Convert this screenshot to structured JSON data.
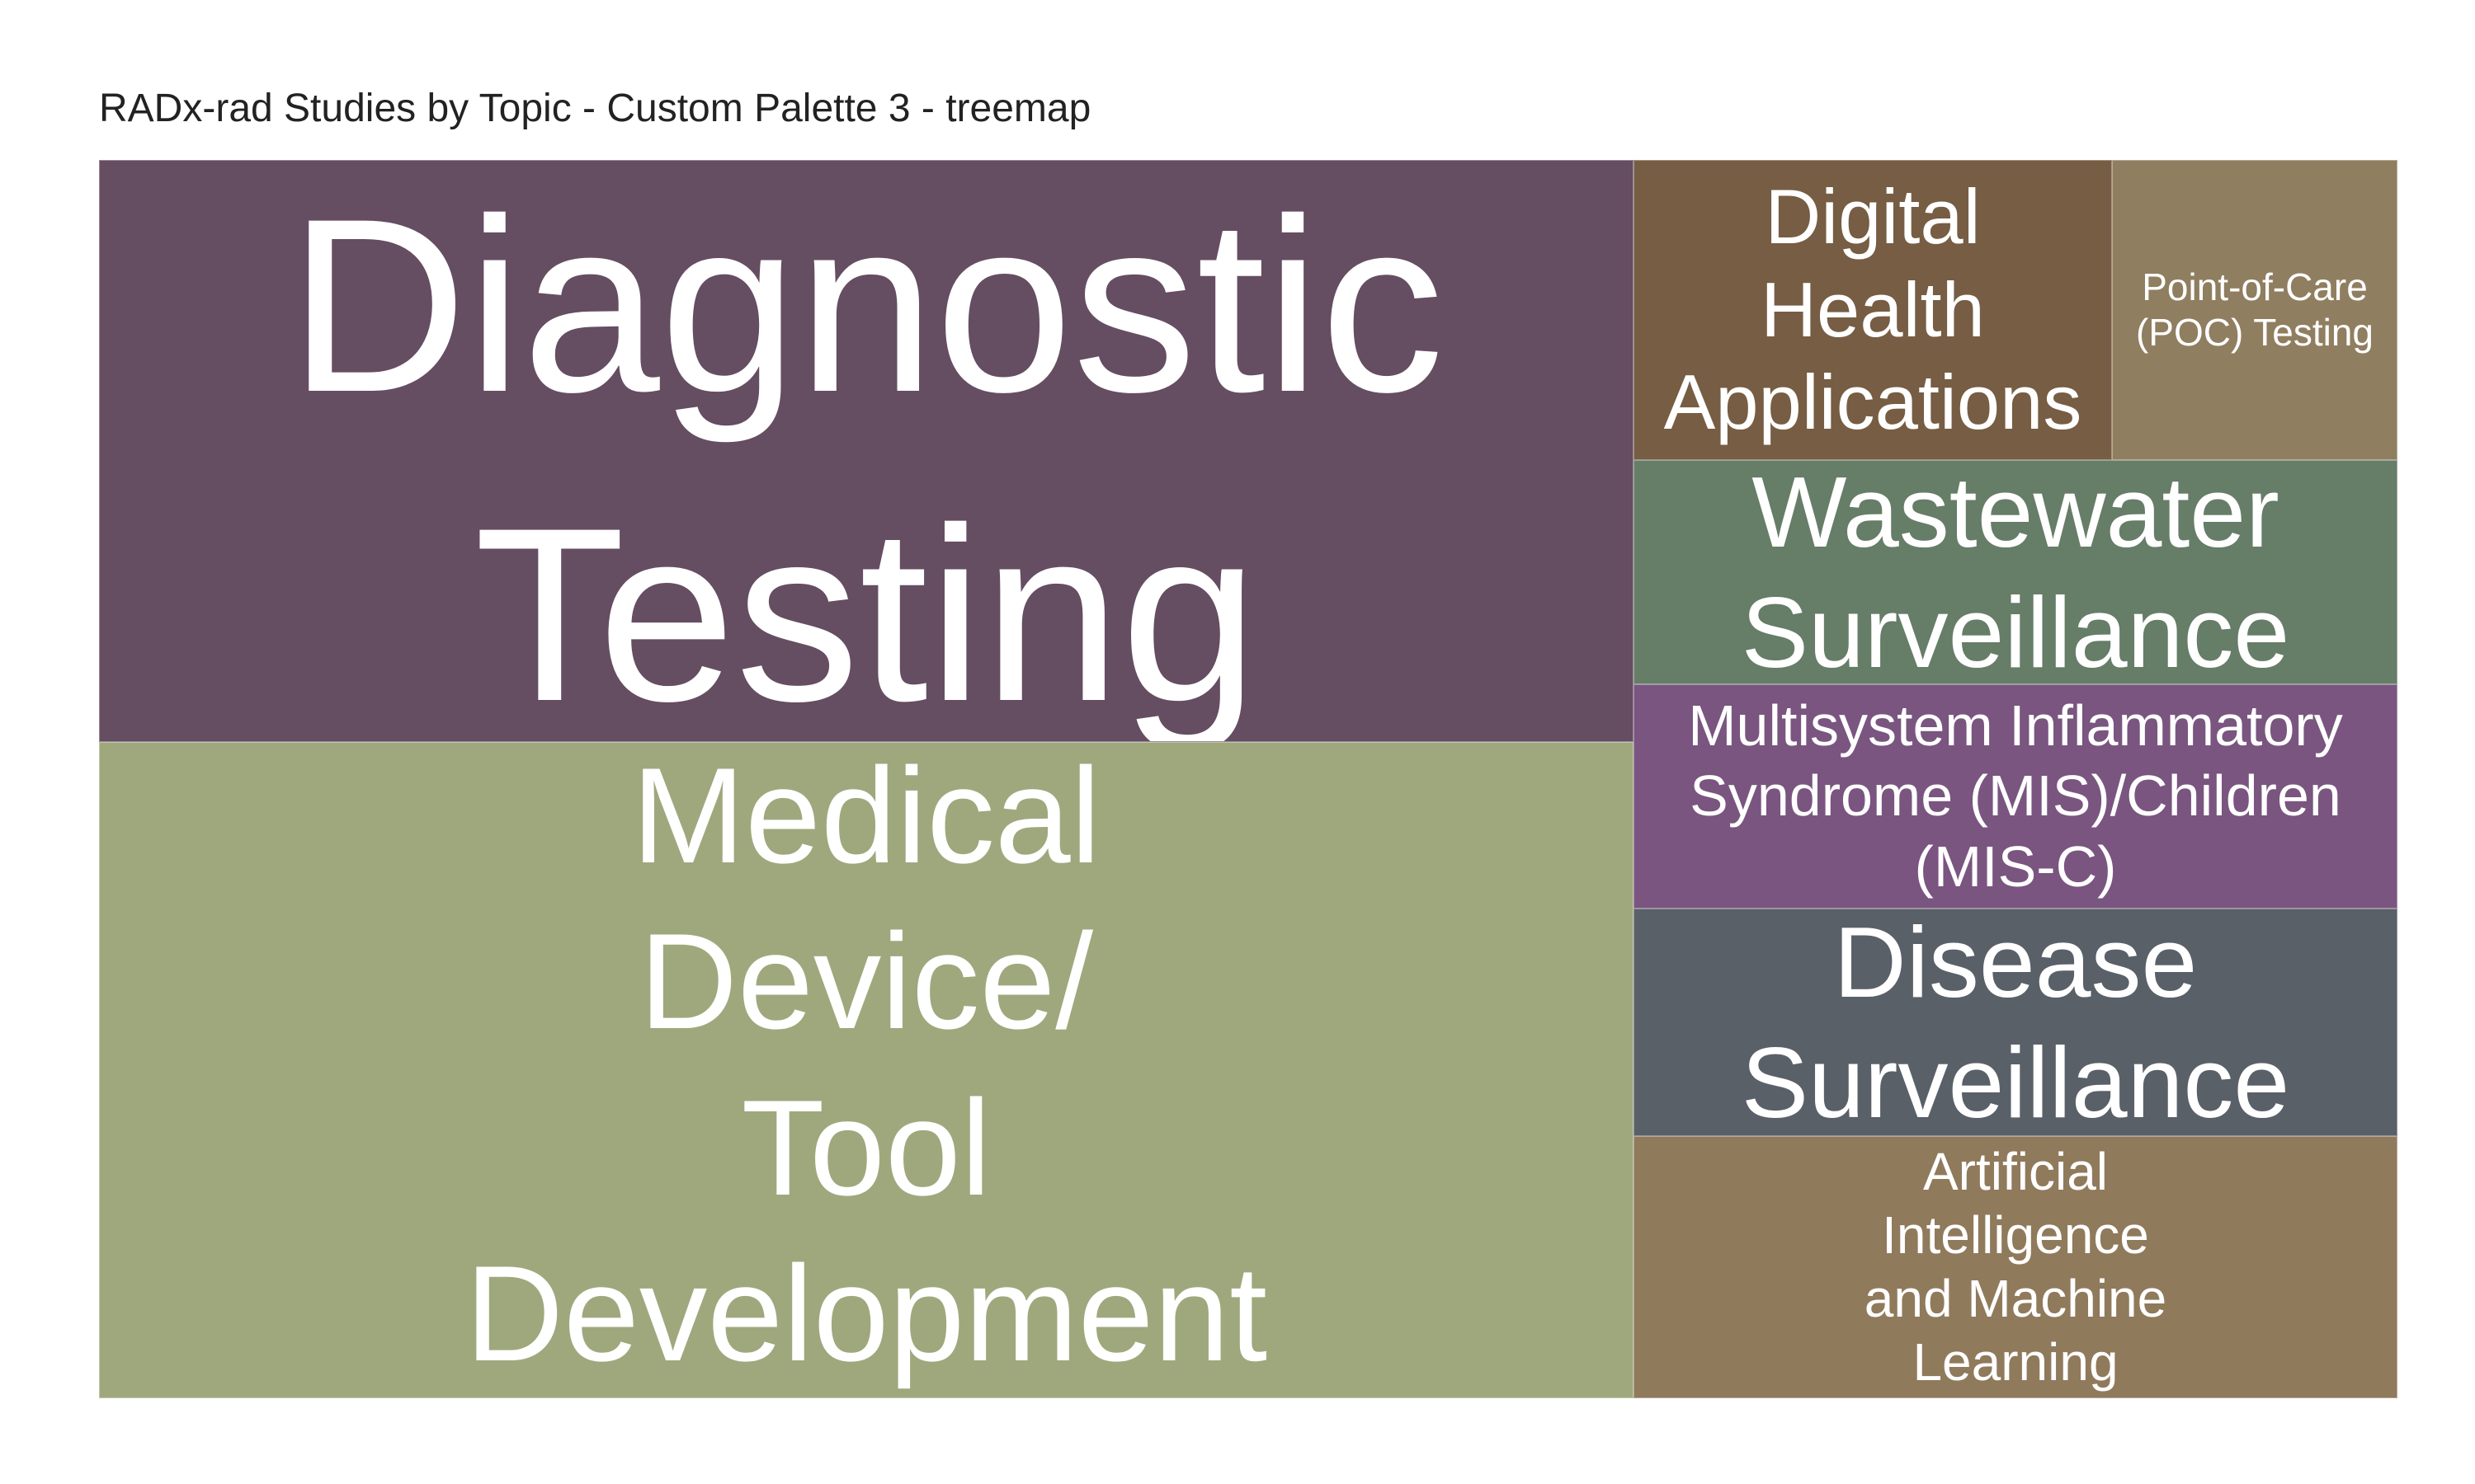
{
  "chart_data": {
    "type": "treemap",
    "title": "RADx-rad Studies by Topic - Custom Palette 3 - treemap",
    "items": [
      {
        "label": "Diagnostic\nTesting",
        "color": "#654D62"
      },
      {
        "label": "Medical\nDevice/\nTool\nDevelopment",
        "color": "#9FA87D"
      },
      {
        "label": "Digital\nHealth\nApplications",
        "color": "#765D43"
      },
      {
        "label": "Point-of-Care\n(POC) Testing",
        "color": "#907E60"
      },
      {
        "label": "Wastewater\nSurveillance",
        "color": "#667D67"
      },
      {
        "label": "Multisystem Inflammatory\nSyndrome (MIS)/Children\n(MIS-C)",
        "color": "#7A5580"
      },
      {
        "label": "Disease\nSurveillance",
        "color": "#596068"
      },
      {
        "label": "Artificial\nIntelligence\nand Machine\nLearning",
        "color": "#907A5C"
      }
    ]
  }
}
